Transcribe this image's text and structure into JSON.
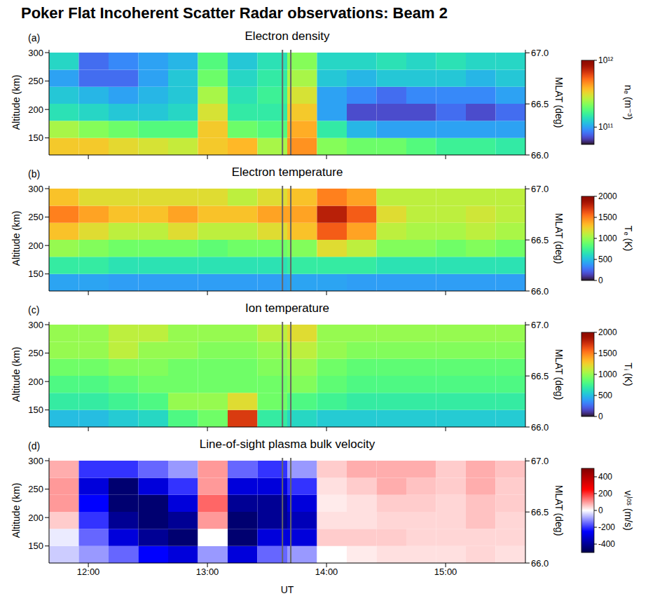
{
  "title": "Poker Flat Incoherent Scatter Radar observations: Beam 2",
  "chart_data": [
    {
      "type": "heatmap",
      "panel": "(a)",
      "title": "Electron density",
      "y_label": "Altitude (km)",
      "y2_label": "MLAT (deg)",
      "tick_labels": "y",
      "xlim": [
        11.67,
        15.67
      ],
      "xticks": [
        {
          "value": 12,
          "label": "12:00"
        },
        {
          "value": 13,
          "label": "13:00"
        },
        {
          "value": 14,
          "label": "14:00"
        },
        {
          "value": 15,
          "label": "15:00"
        }
      ],
      "ylim": [
        120,
        305
      ],
      "yticks": [
        150,
        200,
        250,
        300
      ],
      "y2lim": [
        66.0,
        67.03
      ],
      "y2ticks": [
        {
          "value": 66,
          "label": "66.0"
        },
        66.5,
        {
          "value": 67,
          "label": "67.0"
        }
      ],
      "vlines": [
        13.63,
        13.7
      ],
      "x_bins": [
        11.67,
        11.92,
        12.17,
        12.42,
        12.67,
        12.92,
        13.17,
        13.42,
        13.67,
        13.92,
        14.17,
        14.42,
        14.67,
        14.92,
        15.17,
        15.42,
        15.67
      ],
      "y_bins": [
        120,
        150,
        180,
        210,
        240,
        270,
        300
      ],
      "cells": [
        [
          350000000000.0,
          350000000000.0,
          320000000000.0,
          300000000000.0,
          280000000000.0,
          350000000000.0,
          380000000000.0,
          250000000000.0,
          450000000000.0,
          220000000000.0,
          200000000000.0,
          200000000000.0,
          180000000000.0,
          160000000000.0,
          160000000000.0,
          150000000000.0
        ],
        [
          250000000000.0,
          220000000000.0,
          200000000000.0,
          180000000000.0,
          180000000000.0,
          350000000000.0,
          200000000000.0,
          180000000000.0,
          400000000000.0,
          150000000000.0,
          110000000000.0,
          100000000000.0,
          100000000000.0,
          100000000000.0,
          100000000000.0,
          100000000000.0
        ],
        [
          140000000000.0,
          130000000000.0,
          120000000000.0,
          120000000000.0,
          130000000000.0,
          300000000000.0,
          150000000000.0,
          150000000000.0,
          350000000000.0,
          100000000000.0,
          70000000000.0,
          70000000000.0,
          70000000000.0,
          80000000000.0,
          70000000000.0,
          80000000000.0
        ],
        [
          120000000000.0,
          110000000000.0,
          100000000000.0,
          110000000000.0,
          120000000000.0,
          250000000000.0,
          140000000000.0,
          160000000000.0,
          300000000000.0,
          100000000000.0,
          90000000000.0,
          80000000000.0,
          90000000000.0,
          90000000000.0,
          90000000000.0,
          100000000000.0
        ],
        [
          100000000000.0,
          80000000000.0,
          80000000000.0,
          100000000000.0,
          120000000000.0,
          200000000000.0,
          130000000000.0,
          150000000000.0,
          250000000000.0,
          120000000000.0,
          110000000000.0,
          120000000000.0,
          120000000000.0,
          120000000000.0,
          110000000000.0,
          120000000000.0
        ],
        [
          130000000000.0,
          80000000000.0,
          90000000000.0,
          100000000000.0,
          110000000000.0,
          180000000000.0,
          120000000000.0,
          140000000000.0,
          220000000000.0,
          130000000000.0,
          130000000000.0,
          140000000000.0,
          130000000000.0,
          140000000000.0,
          130000000000.0,
          130000000000.0
        ]
      ],
      "colorbar": {
        "label": "nₑ (m⁻³)",
        "color": "turbo",
        "log": true,
        "range": [
          55000000000.0,
          1000000000000.0
        ],
        "ticks": [
          {
            "value": 100000000000.0,
            "label": "10¹¹"
          },
          {
            "value": 1000000000000.0,
            "label": "10¹²"
          }
        ]
      }
    },
    {
      "type": "heatmap",
      "panel": "(b)",
      "title": "Electron temperature",
      "y_label": "Altitude (km)",
      "y2_label": "MLAT (deg)",
      "tick_labels": "y",
      "xlim": [
        11.67,
        15.67
      ],
      "xticks": [
        {
          "value": 12,
          "label": "12:00"
        },
        {
          "value": 13,
          "label": "13:00"
        },
        {
          "value": 14,
          "label": "14:00"
        },
        {
          "value": 15,
          "label": "15:00"
        }
      ],
      "ylim": [
        120,
        305
      ],
      "yticks": [
        150,
        200,
        250,
        300
      ],
      "y2lim": [
        66.0,
        67.03
      ],
      "y2ticks": [
        {
          "value": 66,
          "label": "66.0"
        },
        66.5,
        {
          "value": 67,
          "label": "67.0"
        }
      ],
      "vlines": [
        13.63,
        13.7
      ],
      "x_bins": [
        11.67,
        11.92,
        12.17,
        12.42,
        12.67,
        12.92,
        13.17,
        13.42,
        13.67,
        13.92,
        14.17,
        14.42,
        14.67,
        14.92,
        15.17,
        15.42,
        15.67
      ],
      "y_bins": [
        120,
        150,
        180,
        210,
        240,
        270,
        300
      ],
      "cells": [
        [
          420,
          420,
          400,
          400,
          400,
          400,
          400,
          400,
          420,
          420,
          400,
          400,
          400,
          400,
          400,
          400
        ],
        [
          700,
          700,
          650,
          650,
          650,
          650,
          650,
          650,
          700,
          700,
          700,
          650,
          650,
          650,
          650,
          650
        ],
        [
          1000,
          950,
          900,
          900,
          900,
          850,
          900,
          900,
          950,
          1200,
          1100,
          950,
          950,
          900,
          950,
          900
        ],
        [
          1300,
          1200,
          1100,
          1100,
          1200,
          1100,
          1100,
          1200,
          1300,
          1600,
          1400,
          1100,
          1050,
          1050,
          1100,
          1050
        ],
        [
          1500,
          1400,
          1300,
          1300,
          1400,
          1300,
          1300,
          1400,
          1400,
          1800,
          1600,
          1200,
          1100,
          1100,
          1150,
          1100
        ],
        [
          1300,
          1200,
          1200,
          1200,
          1200,
          1200,
          1100,
          1200,
          1300,
          1500,
          1400,
          1100,
          1100,
          1100,
          1100,
          1100
        ]
      ],
      "colorbar": {
        "label": "Tₑ (K)",
        "color": "turbo",
        "range": [
          0,
          2000
        ],
        "ticks": [
          0,
          500,
          1000,
          1500,
          2000
        ]
      }
    },
    {
      "type": "heatmap",
      "panel": "(c)",
      "title": "Ion temperature",
      "y_label": "Altitude (km)",
      "y2_label": "MLAT (deg)",
      "tick_labels": "y",
      "xlim": [
        11.67,
        15.67
      ],
      "xticks": [
        {
          "value": 12,
          "label": "12:00"
        },
        {
          "value": 13,
          "label": "13:00"
        },
        {
          "value": 14,
          "label": "14:00"
        },
        {
          "value": 15,
          "label": "15:00"
        }
      ],
      "ylim": [
        120,
        305
      ],
      "yticks": [
        150,
        200,
        250,
        300
      ],
      "y2lim": [
        66.0,
        67.03
      ],
      "y2ticks": [
        {
          "value": 66,
          "label": "66.0"
        },
        66.5,
        {
          "value": 67,
          "label": "67.0"
        }
      ],
      "vlines": [
        13.63,
        13.7
      ],
      "x_bins": [
        11.67,
        11.92,
        12.17,
        12.42,
        12.67,
        12.92,
        13.17,
        13.42,
        13.67,
        13.92,
        14.17,
        14.42,
        14.67,
        14.92,
        15.17,
        15.42,
        15.67
      ],
      "y_bins": [
        120,
        150,
        180,
        210,
        240,
        270,
        300
      ],
      "cells": [
        [
          500,
          500,
          550,
          600,
          800,
          900,
          1700,
          700,
          600,
          550,
          550,
          550,
          550,
          550,
          550,
          550
        ],
        [
          700,
          700,
          750,
          800,
          1000,
          1000,
          1200,
          900,
          800,
          750,
          700,
          700,
          700,
          700,
          700,
          700
        ],
        [
          800,
          800,
          850,
          900,
          900,
          900,
          900,
          900,
          950,
          850,
          800,
          800,
          800,
          800,
          800,
          800
        ],
        [
          900,
          900,
          950,
          950,
          900,
          900,
          900,
          950,
          1000,
          900,
          850,
          850,
          850,
          850,
          850,
          850
        ],
        [
          1000,
          1000,
          1100,
          1000,
          1000,
          950,
          950,
          1000,
          1100,
          1000,
          950,
          950,
          950,
          950,
          950,
          950
        ],
        [
          1000,
          1000,
          1100,
          1100,
          1000,
          1000,
          1000,
          1100,
          1200,
          1000,
          1000,
          1000,
          1000,
          1000,
          1000,
          1000
        ]
      ],
      "colorbar": {
        "label": "Tᵢ (K)",
        "color": "turbo",
        "range": [
          0,
          2000
        ],
        "ticks": [
          0,
          500,
          1000,
          1500,
          2000
        ]
      }
    },
    {
      "type": "heatmap",
      "panel": "(d)",
      "title": "Line-of-sight plasma bulk velocity",
      "x_label": "UT",
      "y_label": "Altitude (km)",
      "y2_label": "MLAT (deg)",
      "xlim": [
        11.67,
        15.67
      ],
      "xticks": [
        {
          "value": 12,
          "label": "12:00"
        },
        {
          "value": 13,
          "label": "13:00"
        },
        {
          "value": 14,
          "label": "14:00"
        },
        {
          "value": 15,
          "label": "15:00"
        }
      ],
      "ylim": [
        120,
        305
      ],
      "yticks": [
        150,
        200,
        250,
        300
      ],
      "y2lim": [
        66.0,
        67.03
      ],
      "y2ticks": [
        {
          "value": 66,
          "label": "66.0"
        },
        66.5,
        {
          "value": 67,
          "label": "67.0"
        }
      ],
      "vlines": [
        13.63,
        13.7
      ],
      "x_bins": [
        11.67,
        11.92,
        12.17,
        12.42,
        12.67,
        12.92,
        13.17,
        13.42,
        13.67,
        13.92,
        14.17,
        14.42,
        14.67,
        14.92,
        15.17,
        15.42,
        15.67
      ],
      "y_bins": [
        120,
        150,
        180,
        210,
        240,
        270,
        300
      ],
      "cells": [
        [
          -50,
          -100,
          -150,
          -250,
          -300,
          -100,
          -300,
          -150,
          -100,
          0,
          20,
          30,
          30,
          30,
          40,
          30
        ],
        [
          -20,
          -150,
          -300,
          -400,
          -450,
          0,
          -450,
          -300,
          -300,
          50,
          50,
          50,
          40,
          40,
          40,
          40
        ],
        [
          50,
          -200,
          -400,
          -450,
          -400,
          100,
          -450,
          -400,
          -350,
          30,
          30,
          40,
          40,
          40,
          60,
          40
        ],
        [
          100,
          -250,
          -450,
          -450,
          -300,
          150,
          -400,
          -400,
          -300,
          20,
          30,
          50,
          50,
          40,
          60,
          50
        ],
        [
          100,
          -300,
          -450,
          -300,
          -200,
          100,
          -300,
          -300,
          -200,
          30,
          50,
          80,
          60,
          50,
          80,
          50
        ],
        [
          80,
          -200,
          -200,
          -150,
          -100,
          100,
          -150,
          -200,
          -100,
          50,
          80,
          80,
          80,
          50,
          80,
          60
        ]
      ],
      "colorbar": {
        "label": "vᵢˡᵒˢ (m/s)",
        "color": "seismic",
        "range": [
          -500,
          500
        ],
        "ticks": [
          -400,
          -200,
          0,
          200,
          400
        ]
      }
    }
  ]
}
